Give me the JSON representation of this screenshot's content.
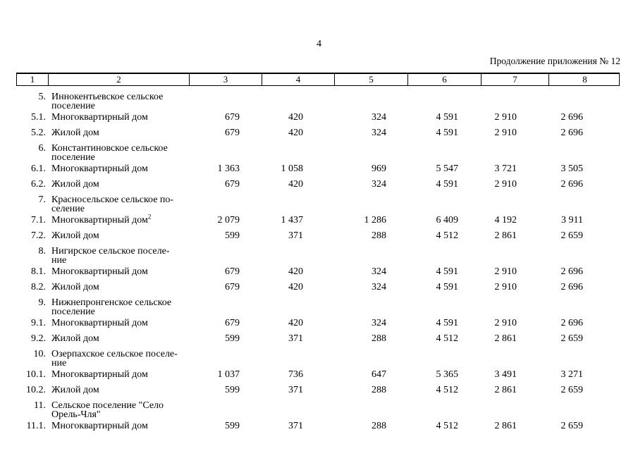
{
  "page": {
    "number": "4",
    "continuation_label": "Продолжение приложения № 12"
  },
  "table": {
    "columns": [
      "1",
      "2",
      "3",
      "4",
      "5",
      "6",
      "7",
      "8"
    ],
    "rows": [
      {
        "num": "5.",
        "name": "Иннокентьевское сельское\nпоселение"
      },
      {
        "num": "5.1.",
        "name": "Многоквартирный дом",
        "values": [
          "679",
          "420",
          "324",
          "4 591",
          "2 910",
          "2 696"
        ]
      },
      {
        "num": "5.2.",
        "name": "Жилой дом",
        "values": [
          "679",
          "420",
          "324",
          "4 591",
          "2 910",
          "2 696"
        ]
      },
      {
        "num": "6.",
        "name": "Константиновское сельское\nпоселение"
      },
      {
        "num": "6.1.",
        "name": "Многоквартирный дом",
        "values": [
          "1 363",
          "1 058",
          "969",
          "5 547",
          "3 721",
          "3 505"
        ]
      },
      {
        "num": "6.2.",
        "name": "Жилой дом",
        "values": [
          "679",
          "420",
          "324",
          "4 591",
          "2 910",
          "2 696"
        ]
      },
      {
        "num": "7.",
        "name": "Красносельское сельское по-\nселение"
      },
      {
        "num": "7.1.",
        "name": "Многоквартирный дом",
        "sup": "2",
        "values": [
          "2 079",
          "1 437",
          "1 286",
          "6 409",
          "4 192",
          "3 911"
        ]
      },
      {
        "num": "7.2.",
        "name": "Жилой дом",
        "values": [
          "599",
          "371",
          "288",
          "4 512",
          "2 861",
          "2 659"
        ]
      },
      {
        "num": "8.",
        "name": "Нигирское сельское поселе-\nние"
      },
      {
        "num": "8.1.",
        "name": "Многоквартирный дом",
        "values": [
          "679",
          "420",
          "324",
          "4 591",
          "2 910",
          "2 696"
        ]
      },
      {
        "num": "8.2.",
        "name": "Жилой дом",
        "values": [
          "679",
          "420",
          "324",
          "4 591",
          "2 910",
          "2 696"
        ]
      },
      {
        "num": "9.",
        "name": "Нижнепронгенское сельское\nпоселение"
      },
      {
        "num": "9.1.",
        "name": "Многоквартирный дом",
        "values": [
          "679",
          "420",
          "324",
          "4 591",
          "2 910",
          "2 696"
        ]
      },
      {
        "num": "9.2.",
        "name": "Жилой дом",
        "values": [
          "599",
          "371",
          "288",
          "4 512",
          "2 861",
          "2 659"
        ]
      },
      {
        "num": "10.",
        "name": "Озерпахское сельское поселе-\nние"
      },
      {
        "num": "10.1.",
        "name": "Многоквартирный дом",
        "values": [
          "1 037",
          "736",
          "647",
          "5 365",
          "3 491",
          "3 271"
        ]
      },
      {
        "num": "10.2.",
        "name": "Жилой дом",
        "values": [
          "599",
          "371",
          "288",
          "4 512",
          "2 861",
          "2 659"
        ]
      },
      {
        "num": "11.",
        "name": "Сельское поселение \"Село\nОрель-Чля\""
      },
      {
        "num": "11.1.",
        "name": "Многоквартирный дом",
        "values": [
          "599",
          "371",
          "288",
          "4 512",
          "2 861",
          "2 659"
        ]
      }
    ]
  }
}
